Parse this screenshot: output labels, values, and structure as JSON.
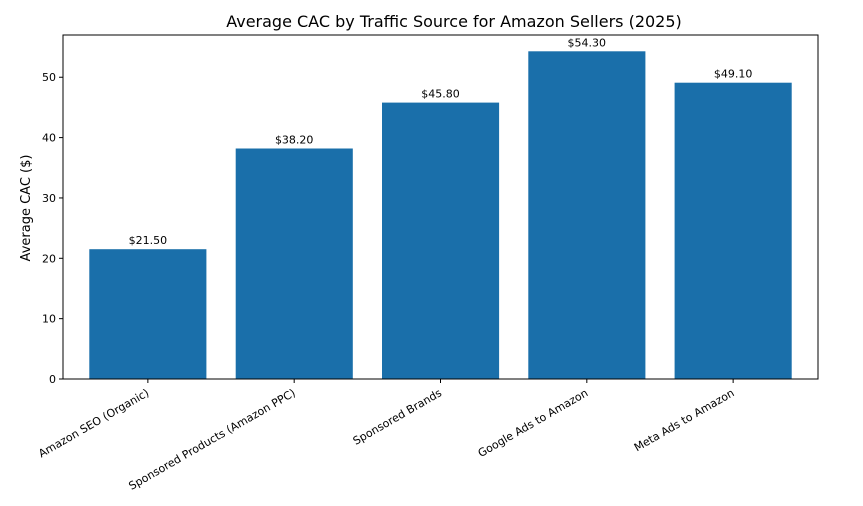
{
  "chart_data": {
    "type": "bar",
    "title": "Average CAC by Traffic Source for Amazon Sellers (2025)",
    "xlabel": "",
    "ylabel": "Average CAC ($)",
    "categories": [
      "Amazon SEO (Organic)",
      "Sponsored Products (Amazon PPC)",
      "Sponsored Brands",
      "Google Ads to Amazon",
      "Meta Ads to Amazon"
    ],
    "values": [
      21.5,
      38.2,
      45.8,
      54.3,
      49.1
    ],
    "value_labels": [
      "$21.50",
      "$38.20",
      "$45.80",
      "$54.30",
      "$49.10"
    ],
    "ylim": [
      0,
      57
    ],
    "yticks": [
      0,
      10,
      20,
      30,
      40,
      50
    ],
    "grid": false,
    "bar_color": "#1a6faa"
  }
}
